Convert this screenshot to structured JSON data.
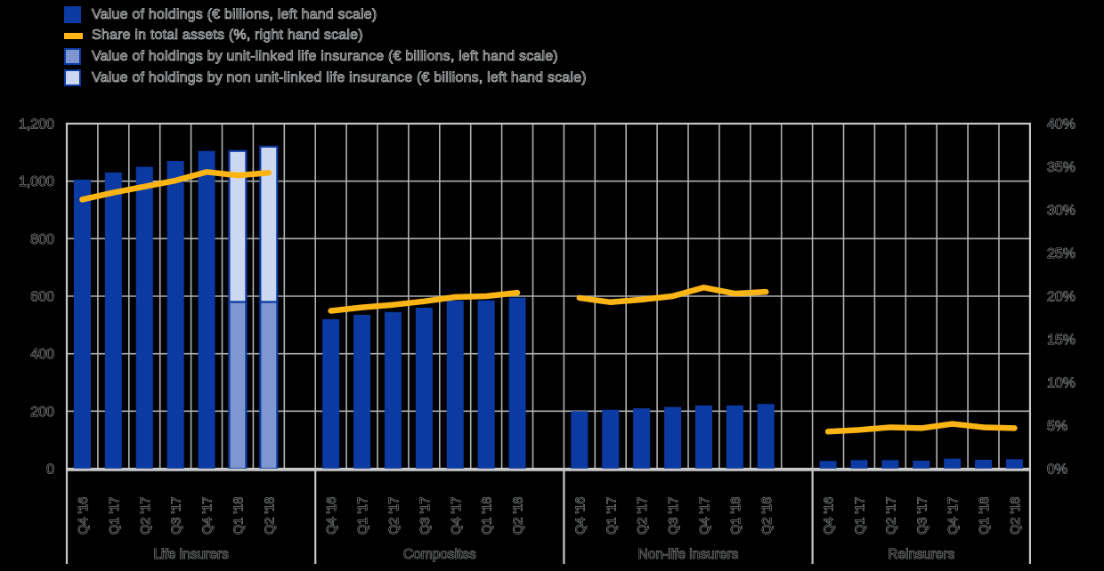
{
  "legend": {
    "items": [
      {
        "label": "Value of holdings (€ billions, left hand scale)",
        "swatch": "holdings-bar"
      },
      {
        "label": "Share in total assets (%, right hand scale)",
        "swatch": "share-line"
      },
      {
        "label": "Value of holdings by unit-linked life insurance (€ billions, left hand scale)",
        "swatch": "unit-linked-bar"
      },
      {
        "label": "Value of holdings by non unit-linked life insurance (€ billions, left hand scale)",
        "swatch": "non-unit-linked-bar"
      }
    ]
  },
  "chart_data": {
    "type": "bar",
    "title": "",
    "grid": true,
    "legend_position": "top-left",
    "left_axis": {
      "min": 0,
      "max": 1200,
      "step": 200,
      "ticks": [
        "0",
        "200",
        "400",
        "600",
        "800",
        "1,000",
        "1,200"
      ]
    },
    "right_axis": {
      "min": 0,
      "max": 40,
      "step": 5,
      "ticks": [
        "0%",
        "5%",
        "10%",
        "15%",
        "20%",
        "25%",
        "30%",
        "35%",
        "40%"
      ]
    },
    "quarters": [
      "Q4 '16",
      "Q1 '17",
      "Q2 '17",
      "Q3 '17",
      "Q4 '17",
      "Q1 '18",
      "Q2 '18"
    ],
    "groups": [
      {
        "label": "Life insurers",
        "holdings_total": [
          1005,
          1030,
          1050,
          1070,
          1105,
          1105,
          1120
        ],
        "unit_linked": [
          null,
          null,
          null,
          null,
          null,
          580,
          580
        ],
        "non_unit_linked": [
          null,
          null,
          null,
          null,
          null,
          525,
          540
        ],
        "share_in_total_assets": [
          31.2,
          32.0,
          32.7,
          33.4,
          34.4,
          34.0,
          34.3
        ]
      },
      {
        "label": "Composites",
        "holdings_total": [
          520,
          535,
          545,
          560,
          585,
          585,
          595
        ],
        "unit_linked": [
          null,
          null,
          null,
          null,
          null,
          null,
          null
        ],
        "non_unit_linked": [
          null,
          null,
          null,
          null,
          null,
          null,
          null
        ],
        "share_in_total_assets": [
          18.3,
          18.7,
          19.0,
          19.4,
          19.9,
          20.0,
          20.4
        ]
      },
      {
        "label": "Non-life insurers",
        "holdings_total": [
          200,
          205,
          210,
          215,
          220,
          220,
          225
        ],
        "unit_linked": [
          null,
          null,
          null,
          null,
          null,
          null,
          null
        ],
        "non_unit_linked": [
          null,
          null,
          null,
          null,
          null,
          null,
          null
        ],
        "share_in_total_assets": [
          19.8,
          19.3,
          19.6,
          20.0,
          21.0,
          20.3,
          20.5
        ]
      },
      {
        "label": "Reinsurers",
        "holdings_total": [
          27,
          30,
          30,
          28,
          35,
          31,
          33
        ],
        "unit_linked": [
          null,
          null,
          null,
          null,
          null,
          null,
          null
        ],
        "non_unit_linked": [
          null,
          null,
          null,
          null,
          null,
          null,
          null
        ],
        "share_in_total_assets": [
          4.3,
          4.5,
          4.8,
          4.7,
          5.2,
          4.8,
          4.7
        ]
      }
    ]
  },
  "colors": {
    "background": "#000000",
    "holdings_bar": "#0b3aa2",
    "unit_linked_bar": "#7e97d0",
    "non_unit_linked_bar": "#ccd8f2",
    "share_line": "#fdb515",
    "gridline": "#aeb0b2",
    "axis": "#c6c8ca",
    "text_outline": "#b6b9bb"
  }
}
